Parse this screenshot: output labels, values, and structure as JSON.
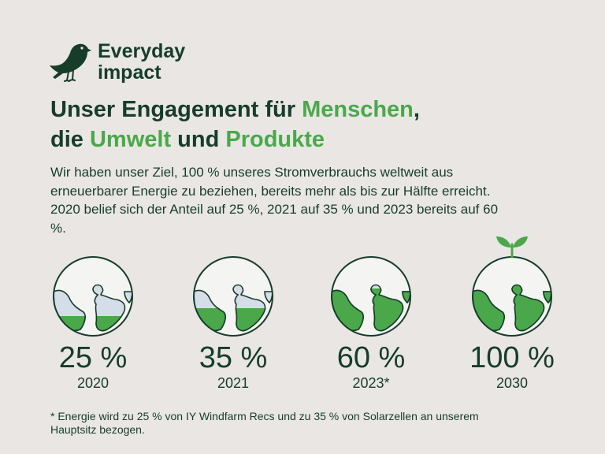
{
  "logo": {
    "icon": "bird-icon",
    "line1": "Everyday",
    "line2": "impact"
  },
  "headline": {
    "part1": "Unser Engagement für ",
    "green1": "Menschen",
    "part2": ",",
    "part3": "die ",
    "green2": "Umwelt",
    "part4": " und ",
    "green3": "Produkte"
  },
  "intro": "Wir haben unser Ziel, 100 % unseres Stromverbrauchs weltweit aus erneuerbarer Energie zu beziehen, bereits mehr als bis zur Hälfte erreicht. 2020 belief sich der Anteil auf 25 %, 2021 auf 35 % und 2023 bereits auf 60 %.",
  "stats": [
    {
      "percent_label": "25 %",
      "year": "2020",
      "fill_fraction": 0.25,
      "icon": "globe-icon"
    },
    {
      "percent_label": "35 %",
      "year": "2021",
      "fill_fraction": 0.35,
      "icon": "globe-icon"
    },
    {
      "percent_label": "60 %",
      "year": "2023*",
      "fill_fraction": 0.6,
      "icon": "globe-icon"
    },
    {
      "percent_label": "100 %",
      "year": "2030",
      "fill_fraction": 1.0,
      "icon": "globe-sprout-icon"
    }
  ],
  "footnote": "* Energie wird zu 25 % von IY Windfarm Recs und zu 35 % von Solarzellen an unserem Hauptsitz bezogen.",
  "colors": {
    "background": "#e9e6e4",
    "dark_green": "#163d2a",
    "accent_green": "#4aa84a",
    "globe_water": "#f4f4f2",
    "globe_land_empty": "#d4dde8"
  }
}
